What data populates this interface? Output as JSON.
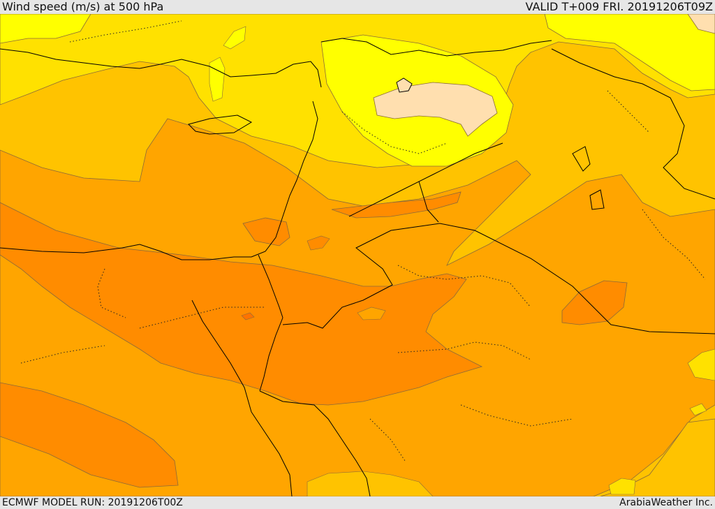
{
  "header": {
    "title": "Wind speed (m/s) at 500 hPa",
    "valid": "VALID T+009 FRI. 20191206T09Z"
  },
  "footer": {
    "model_run": "ECMWF MODEL RUN: 20191206T00Z",
    "credit": "ArabiaWeather Inc."
  },
  "palette": {
    "band_lightest": "#ffdfaf",
    "band_1": "#ffff00",
    "band_2": "#ffe100",
    "band_3": "#ffc300",
    "band_4": "#ffa500",
    "band_5": "#ff8c00",
    "band_6": "#ff7300",
    "contour": "#8a6a3a",
    "border": "#000000"
  }
}
